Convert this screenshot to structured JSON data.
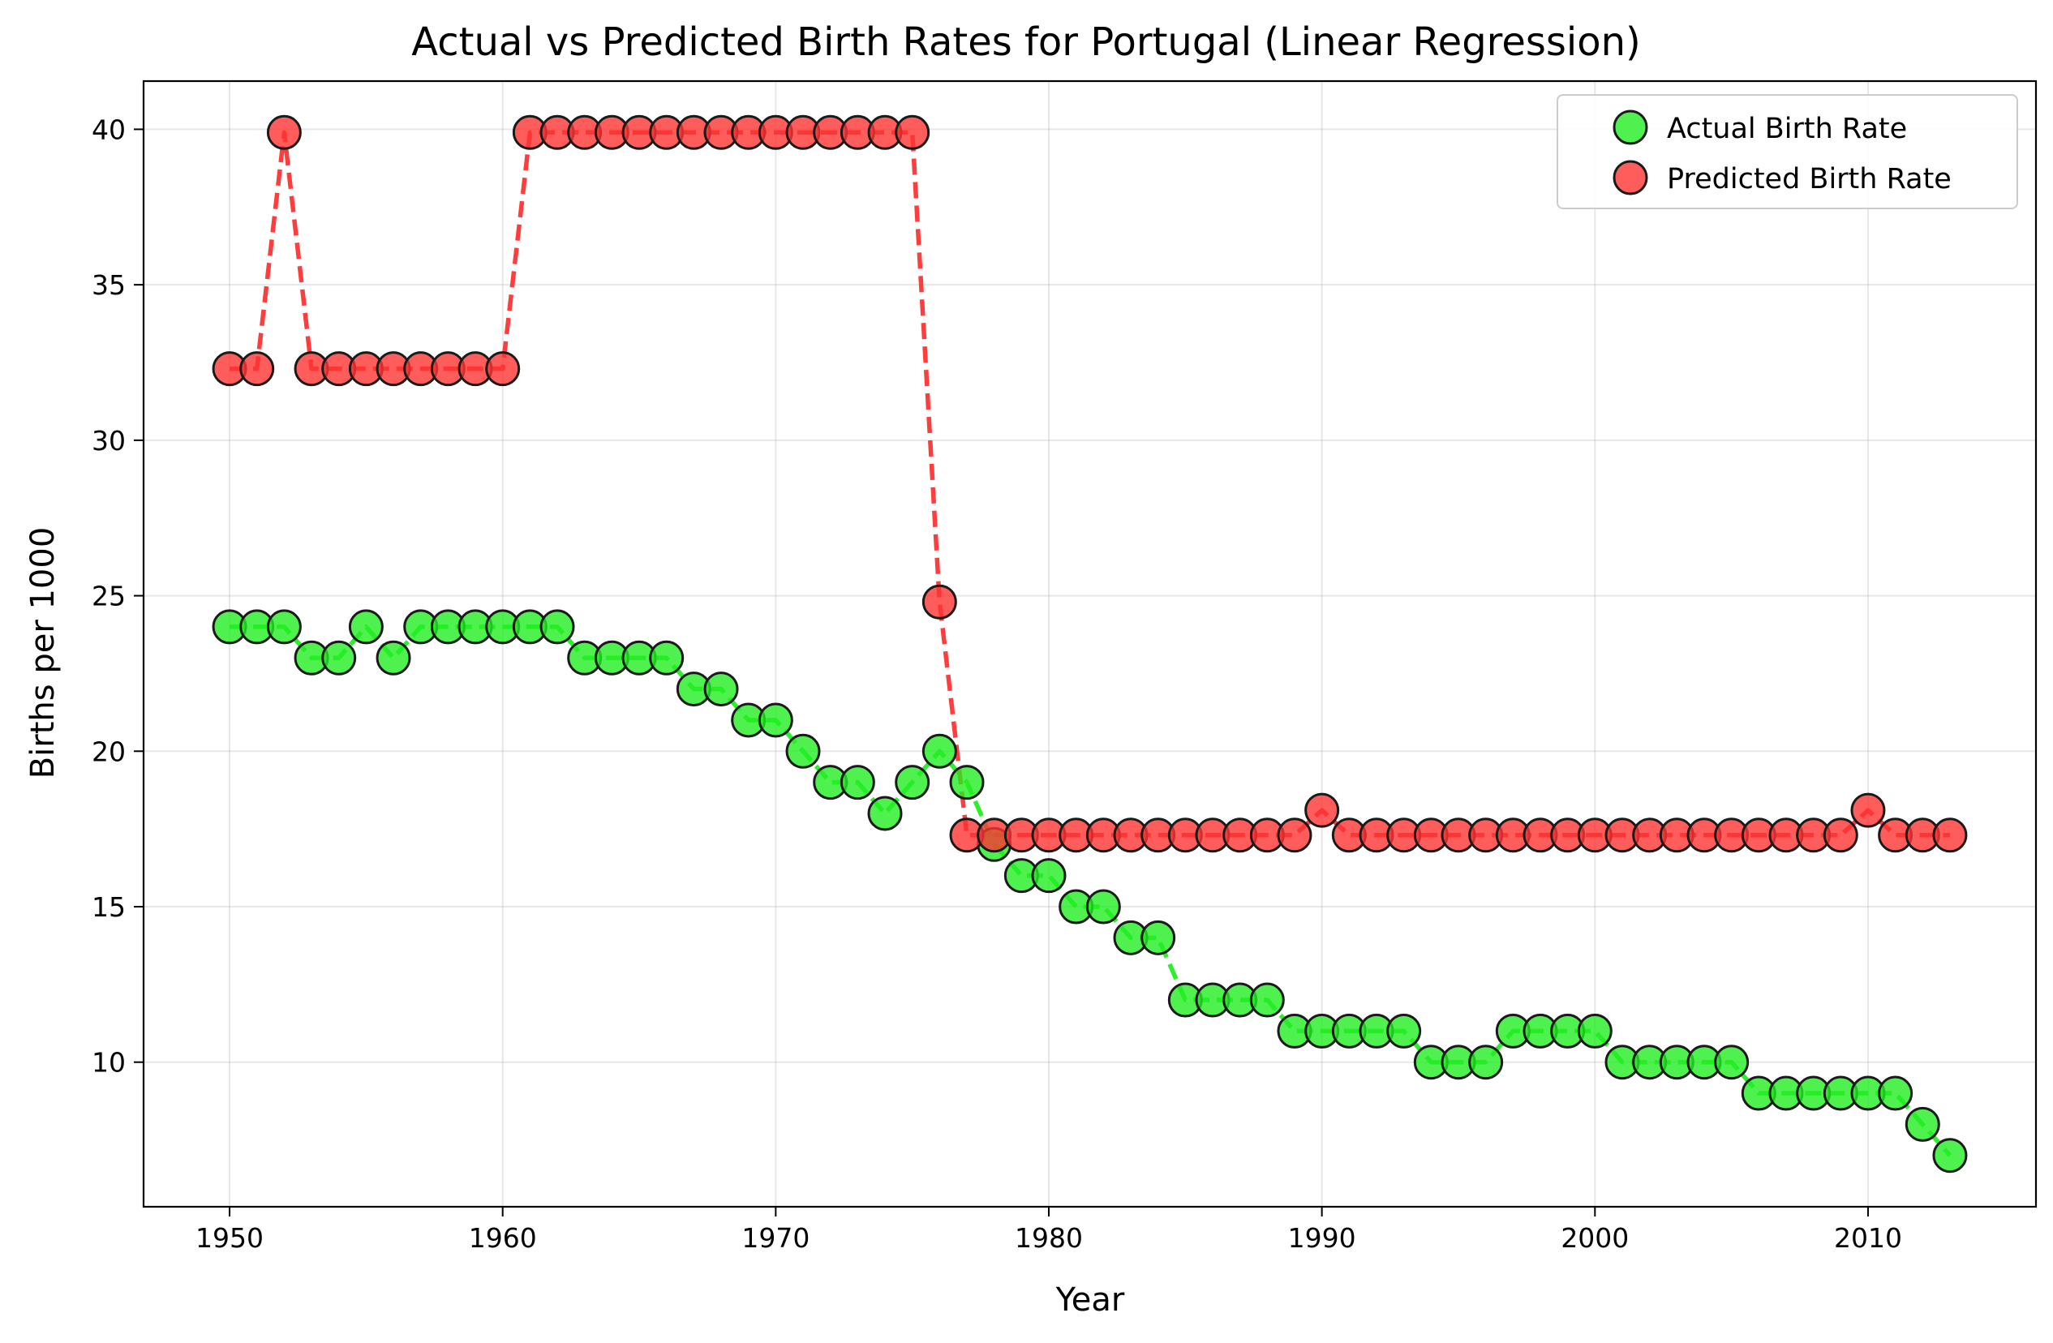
{
  "chart_data": {
    "type": "line",
    "title": "Actual vs Predicted Birth Rates for Portugal (Linear Regression)",
    "xlabel": "Year",
    "ylabel": "Births per 1000",
    "xlim": [
      1946.85,
      2016.15
    ],
    "ylim": [
      5.35,
      41.55
    ],
    "xticks": [
      1950,
      1960,
      1970,
      1980,
      1990,
      2000,
      2010
    ],
    "yticks": [
      10,
      15,
      20,
      25,
      30,
      35,
      40
    ],
    "grid": true,
    "legend_position": "top-right",
    "x": [
      1950,
      1951,
      1952,
      1953,
      1954,
      1955,
      1956,
      1957,
      1958,
      1959,
      1960,
      1961,
      1962,
      1963,
      1964,
      1965,
      1966,
      1967,
      1968,
      1969,
      1970,
      1971,
      1972,
      1973,
      1974,
      1975,
      1976,
      1977,
      1978,
      1979,
      1980,
      1981,
      1982,
      1983,
      1984,
      1985,
      1986,
      1987,
      1988,
      1989,
      1990,
      1991,
      1992,
      1993,
      1994,
      1995,
      1996,
      1997,
      1998,
      1999,
      2000,
      2001,
      2002,
      2003,
      2004,
      2005,
      2006,
      2007,
      2008,
      2009,
      2010,
      2011,
      2012,
      2013
    ],
    "series": [
      {
        "name": "Actual Birth Rate",
        "color": "#22ee22",
        "values": [
          24,
          24,
          24,
          23,
          23,
          24,
          23,
          24,
          24,
          24,
          24,
          24,
          24,
          23,
          23,
          23,
          23,
          22,
          22,
          21,
          21,
          20,
          19,
          19,
          18,
          19,
          20,
          19,
          17,
          16,
          16,
          15,
          15,
          14,
          14,
          12,
          12,
          12,
          12,
          11,
          11,
          11,
          11,
          11,
          10,
          10,
          10,
          11,
          11,
          11,
          11,
          10,
          10,
          10,
          10,
          10,
          9,
          9,
          9,
          9,
          9,
          9,
          8,
          7
        ]
      },
      {
        "name": "Predicted Birth Rate",
        "color": "#ff3333",
        "values": [
          32.3,
          32.3,
          39.9,
          32.3,
          32.3,
          32.3,
          32.3,
          32.3,
          32.3,
          32.3,
          32.3,
          39.9,
          39.9,
          39.9,
          39.9,
          39.9,
          39.9,
          39.9,
          39.9,
          39.9,
          39.9,
          39.9,
          39.9,
          39.9,
          39.9,
          39.9,
          24.8,
          17.3,
          17.3,
          17.3,
          17.3,
          17.3,
          17.3,
          17.3,
          17.3,
          17.3,
          17.3,
          17.3,
          17.3,
          17.3,
          18.1,
          17.3,
          17.3,
          17.3,
          17.3,
          17.3,
          17.3,
          17.3,
          17.3,
          17.3,
          17.3,
          17.3,
          17.3,
          17.3,
          17.3,
          17.3,
          17.3,
          17.3,
          17.3,
          17.3,
          18.1,
          17.3,
          17.3,
          17.3
        ]
      }
    ]
  }
}
